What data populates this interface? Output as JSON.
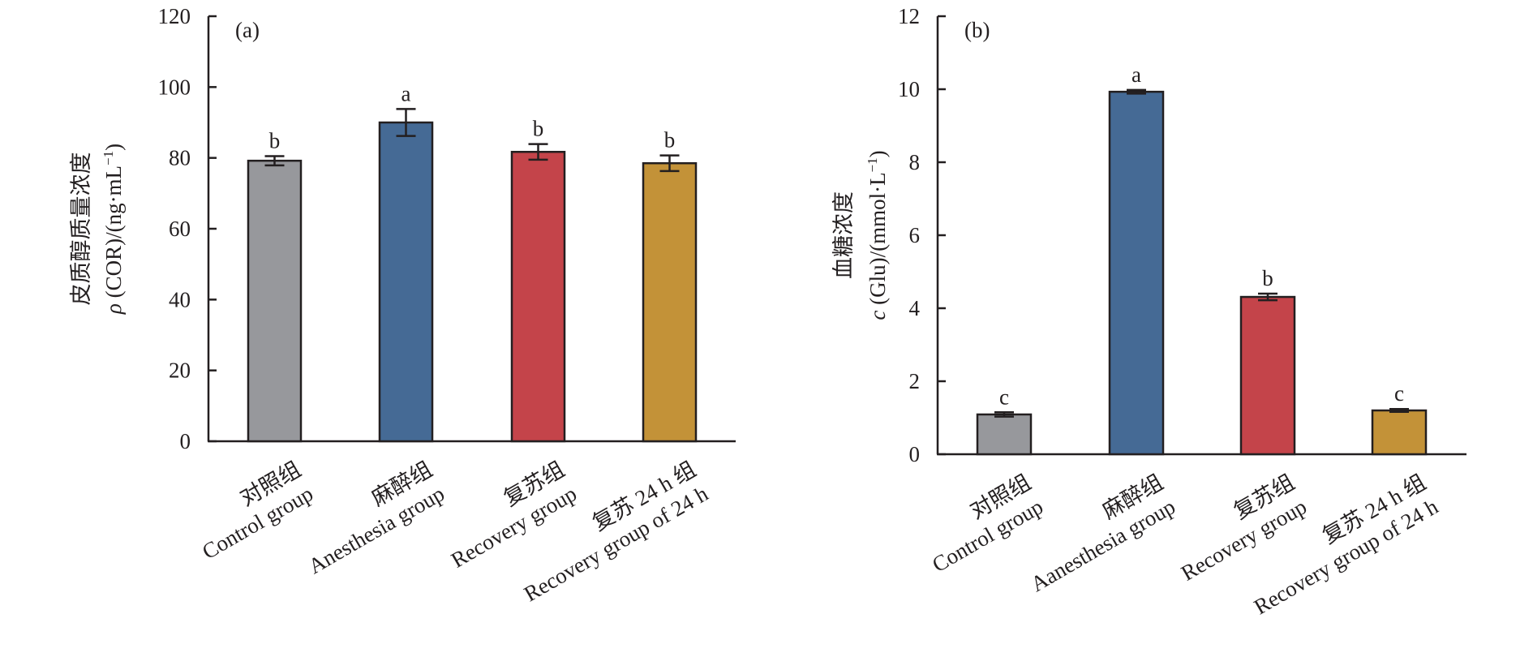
{
  "chart_data": [
    {
      "type": "bar",
      "panel_label": "(a)",
      "title": "",
      "ylabel_line1": "皮质醇质量浓度",
      "ylabel_line2_symbol": "ρ",
      "ylabel_line2_rest": " (COR)/(ng·mL",
      "ylabel_line2_sup": "−1",
      "ylabel_line2_close": ")",
      "xlabel": "",
      "ylim": [
        0,
        120
      ],
      "yticks": [
        0,
        20,
        40,
        60,
        80,
        100,
        120
      ],
      "grid": false,
      "categories": [
        {
          "zh": "对照组",
          "en": "Control group"
        },
        {
          "zh": "麻醉组",
          "en": "Anesthesia group"
        },
        {
          "zh": "复苏组",
          "en": "Recovery group"
        },
        {
          "zh": "复苏 24 h 组",
          "en": "Recovery group of 24 h"
        }
      ],
      "values": [
        79.2,
        90.0,
        81.7,
        78.5
      ],
      "errors": [
        1.3,
        3.8,
        2.2,
        2.2
      ],
      "significance": [
        "b",
        "a",
        "b",
        "b"
      ],
      "colors": [
        "#97989c",
        "#456a95",
        "#c4444a",
        "#c39238"
      ]
    },
    {
      "type": "bar",
      "panel_label": "(b)",
      "title": "",
      "ylabel_line1": "血糖浓度",
      "ylabel_line2_symbol": "c",
      "ylabel_line2_rest": " (Glu)/(mmol·L",
      "ylabel_line2_sup": "−1",
      "ylabel_line2_close": ")",
      "xlabel": "",
      "ylim": [
        0,
        12
      ],
      "yticks": [
        0,
        2,
        4,
        6,
        8,
        10,
        12
      ],
      "grid": false,
      "categories": [
        {
          "zh": "对照组",
          "en": "Control group"
        },
        {
          "zh": "麻醉组",
          "en": "Aanesthesia group"
        },
        {
          "zh": "复苏组",
          "en": "Recovery group"
        },
        {
          "zh": "复苏 24 h 组",
          "en": "Recovery group of 24 h"
        }
      ],
      "values": [
        1.09,
        9.93,
        4.31,
        1.2
      ],
      "errors": [
        0.06,
        0.05,
        0.09,
        0.04
      ],
      "significance": [
        "c",
        "a",
        "b",
        "c"
      ],
      "colors": [
        "#97989c",
        "#456a95",
        "#c4444a",
        "#c39238"
      ]
    }
  ]
}
